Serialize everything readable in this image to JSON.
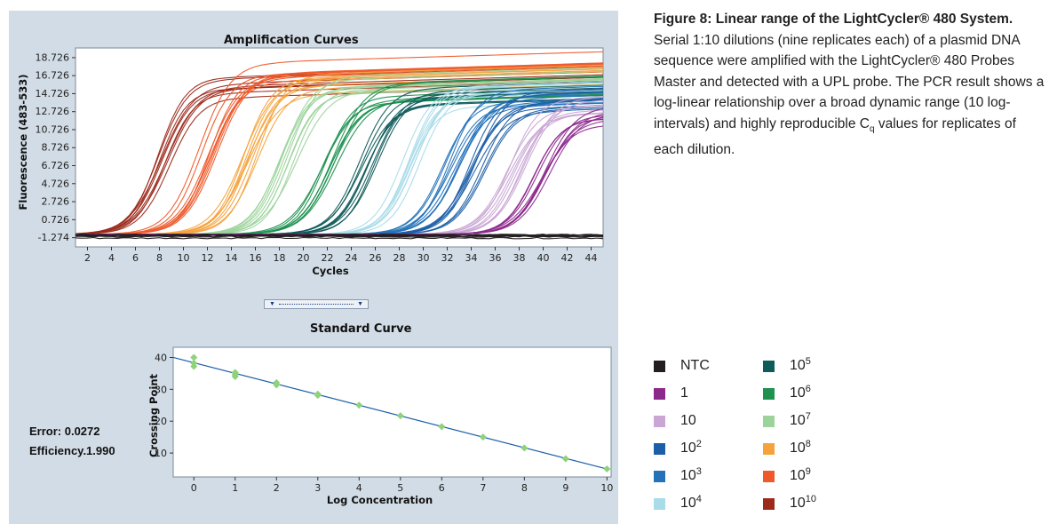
{
  "caption": {
    "bold": "Figure 8: Linear range of the LightCycler® 480 System.",
    "text": " Serial 1:10 dilutions (nine replicates each) of a plasmid DNA sequence were amplified with the LightCycler® 480 Probes Master and detected with a UPL probe. The PCR result shows a log-linear relationship over a broad dynamic range (10 log-intervals) and highly reproducible C",
    "subscript": "q",
    "text_end": " values for replicates of each dilution."
  },
  "stats": {
    "error": "Error: 0.0272",
    "efficiency": "Efficiency.1.990"
  },
  "legend": [
    {
      "base": "NTC",
      "exp": "",
      "color": "#231f20"
    },
    {
      "base": "1",
      "exp": "",
      "color": "#8c2a8c"
    },
    {
      "base": "10",
      "exp": "",
      "color": "#c9a6d4"
    },
    {
      "base": "10",
      "exp": "2",
      "color": "#1c5fa8"
    },
    {
      "base": "10",
      "exp": "3",
      "color": "#2472b8"
    },
    {
      "base": "10",
      "exp": "4",
      "color": "#a9dbe9"
    },
    {
      "base": "10",
      "exp": "5",
      "color": "#0f5a5a"
    },
    {
      "base": "10",
      "exp": "6",
      "color": "#1f9150"
    },
    {
      "base": "10",
      "exp": "7",
      "color": "#9bd39b"
    },
    {
      "base": "10",
      "exp": "8",
      "color": "#f6a23c"
    },
    {
      "base": "10",
      "exp": "9",
      "color": "#ee5a2a"
    },
    {
      "base": "10",
      "exp": "10",
      "color": "#9b2a1b"
    }
  ],
  "chart_data": [
    {
      "type": "line",
      "title": "Amplification Curves",
      "xlabel": "Cycles",
      "ylabel": "Fluorescence (483-533)",
      "xlim": [
        1,
        45
      ],
      "ylim": [
        -2.3,
        19.8
      ],
      "xticks": [
        2,
        4,
        6,
        8,
        10,
        12,
        14,
        16,
        18,
        20,
        22,
        24,
        26,
        28,
        30,
        32,
        34,
        36,
        38,
        40,
        42,
        44
      ],
      "yticks": [
        18.726,
        16.726,
        14.726,
        12.726,
        10.726,
        8.726,
        6.726,
        4.726,
        2.726,
        0.726,
        -1.274
      ],
      "ytick_labels": [
        "18.726",
        "16.726",
        "14.726",
        "12.726",
        "10.726",
        "8.726",
        "6.726",
        "4.726",
        "2.726",
        "0.726",
        "-1.274"
      ],
      "grid": false,
      "series": [
        {
          "name": "10^10",
          "color": "#9b2a1b",
          "midpoint_cycle": 8.6,
          "plateau": 15.2
        },
        {
          "name": "10^9",
          "color": "#ee5a2a",
          "midpoint_cycle": 12.0,
          "plateau": 16.9
        },
        {
          "name": "10^8",
          "color": "#f6a23c",
          "midpoint_cycle": 15.4,
          "plateau": 15.6
        },
        {
          "name": "10^7",
          "color": "#9bd39b",
          "midpoint_cycle": 18.8,
          "plateau": 15.6
        },
        {
          "name": "10^6",
          "color": "#1f9150",
          "midpoint_cycle": 22.2,
          "plateau": 14.8
        },
        {
          "name": "10^5",
          "color": "#0f5a5a",
          "midpoint_cycle": 25.5,
          "plateau": 14.5
        },
        {
          "name": "10^4",
          "color": "#a9dbe9",
          "midpoint_cycle": 28.9,
          "plateau": 14.2
        },
        {
          "name": "10^3",
          "color": "#2472b8",
          "midpoint_cycle": 32.3,
          "plateau": 14.0
        },
        {
          "name": "10^2",
          "color": "#1c5fa8",
          "midpoint_cycle": 34.5,
          "plateau": 13.8
        },
        {
          "name": "10",
          "color": "#c9a6d4",
          "midpoint_cycle": 37.8,
          "plateau": 13.0
        },
        {
          "name": "1",
          "color": "#8c2a8c",
          "midpoint_cycle": 39.8,
          "plateau": 12.0
        },
        {
          "name": "NTC",
          "color": "#231f20",
          "midpoint_cycle": null,
          "plateau": -1.0
        }
      ]
    },
    {
      "type": "scatter",
      "title": "Standard Curve",
      "xlabel": "Log Concentration",
      "ylabel": "Crossing Point",
      "xlim": [
        -0.5,
        10.1
      ],
      "ylim": [
        2.5,
        43.2
      ],
      "xticks": [
        0,
        1,
        2,
        3,
        4,
        5,
        6,
        7,
        8,
        9,
        10
      ],
      "yticks": [
        10,
        20,
        30,
        40
      ],
      "grid": false,
      "points": [
        {
          "x": 0,
          "y": 40.0
        },
        {
          "x": 0,
          "y": 38.2
        },
        {
          "x": 0,
          "y": 37.2
        },
        {
          "x": 1,
          "y": 35.3
        },
        {
          "x": 1,
          "y": 34.6
        },
        {
          "x": 1,
          "y": 34.0
        },
        {
          "x": 2,
          "y": 32.1
        },
        {
          "x": 2,
          "y": 31.4
        },
        {
          "x": 3,
          "y": 28.5
        },
        {
          "x": 3,
          "y": 28.1
        },
        {
          "x": 4,
          "y": 25.0
        },
        {
          "x": 5,
          "y": 21.7
        },
        {
          "x": 6,
          "y": 18.3
        },
        {
          "x": 7,
          "y": 15.0
        },
        {
          "x": 8,
          "y": 11.6
        },
        {
          "x": 9,
          "y": 8.2
        },
        {
          "x": 10,
          "y": 5.0
        }
      ],
      "fit_line": {
        "x": [
          -0.5,
          10
        ],
        "y": [
          40.0,
          5.0
        ],
        "color": "#1c5fa8"
      },
      "point_color": "#8ed27a"
    }
  ]
}
